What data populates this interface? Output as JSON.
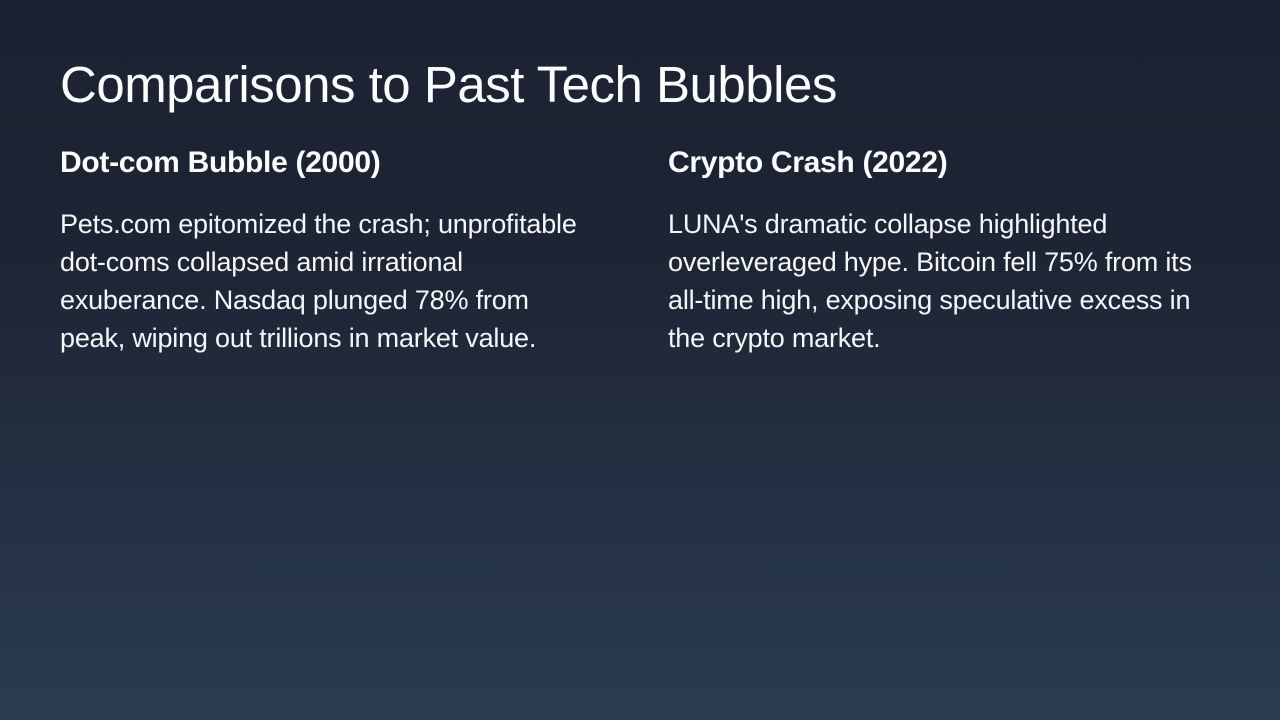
{
  "slide": {
    "title": "Comparisons to Past Tech Bubbles",
    "columns": [
      {
        "heading": "Dot-com Bubble (2000)",
        "body": "Pets.com epitomized the crash; unprofitable dot-coms collapsed amid irrational exuberance. Nasdaq plunged 78% from peak, wiping out trillions in market value."
      },
      {
        "heading": "Crypto Crash (2022)",
        "body": "LUNA's dramatic collapse highlighted overleveraged hype. Bitcoin fell 75% from its all-time high, exposing speculative excess in the crypto market."
      }
    ],
    "colors": {
      "background_top": "#1b2231",
      "background_bottom": "#2c3b4e",
      "text": "#ffffff"
    }
  }
}
